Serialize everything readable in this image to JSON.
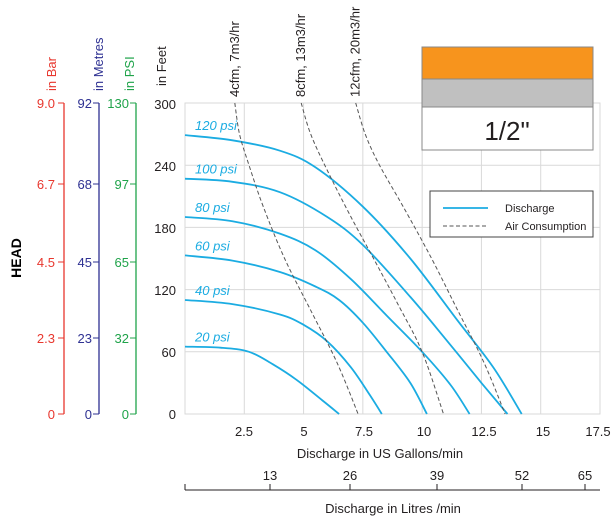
{
  "colors": {
    "bar": "#e8372e",
    "metres": "#2e3192",
    "psi": "#1fa34a",
    "feet": "#231f20",
    "discharge": "#1bace2",
    "air": "#555555",
    "grid": "#d9d9d9",
    "badge_top": "#f7941d",
    "badge_mid": "#c0c0c0",
    "badge_border": "#888888"
  },
  "head_label": "HEAD",
  "size_badge": "1/2\"",
  "legend": {
    "discharge": "Discharge",
    "air": "Air Consumption"
  },
  "axes": {
    "bar": {
      "title": "in Bar",
      "ticks": [
        "9.0",
        "6.7",
        "4.5",
        "2.3",
        "0"
      ]
    },
    "metres": {
      "title": "in Metres",
      "ticks": [
        "92",
        "68",
        "45",
        "23",
        "0"
      ]
    },
    "psi": {
      "title": "in PSI",
      "ticks": [
        "130",
        "97",
        "65",
        "32",
        "0"
      ]
    },
    "feet": {
      "title": "in Feet",
      "ticks": [
        "300",
        "240",
        "180",
        "120",
        "60",
        "0"
      ]
    },
    "x_gpm": {
      "title": "Discharge in US Gallons/min",
      "ticks": [
        "2.5",
        "5",
        "7.5",
        "10",
        "12.5",
        "15",
        "17.5"
      ]
    },
    "x_lpm": {
      "title": "Discharge in Litres /min",
      "ticks": [
        "13",
        "26",
        "39",
        "52",
        "65"
      ]
    }
  },
  "chart_data": {
    "type": "line",
    "xlabel": "Discharge in US Gallons/min",
    "ylabel": "in Feet",
    "xlim": [
      0,
      17.5
    ],
    "ylim": [
      0,
      300
    ],
    "grid": true,
    "legend_position": "top-right",
    "series": [
      {
        "name": "120 psi",
        "kind": "discharge",
        "label": "120 psi",
        "points": [
          [
            0,
            269
          ],
          [
            2,
            264
          ],
          [
            4,
            254
          ],
          [
            5.5,
            238
          ],
          [
            7.5,
            200
          ],
          [
            9.5,
            150
          ],
          [
            11.5,
            90
          ],
          [
            13,
            45
          ],
          [
            14.2,
            0
          ]
        ]
      },
      {
        "name": "100 psi",
        "kind": "discharge",
        "label": "100 psi",
        "points": [
          [
            0,
            227
          ],
          [
            2,
            224
          ],
          [
            4,
            214
          ],
          [
            6,
            190
          ],
          [
            7.5,
            163
          ],
          [
            9.5,
            113
          ],
          [
            11,
            72
          ],
          [
            12.5,
            30
          ],
          [
            13.6,
            0
          ]
        ]
      },
      {
        "name": "80 psi",
        "kind": "discharge",
        "label": "80 psi",
        "points": [
          [
            0,
            190
          ],
          [
            2,
            186
          ],
          [
            4,
            174
          ],
          [
            5.5,
            158
          ],
          [
            7,
            130
          ],
          [
            8.5,
            95
          ],
          [
            10,
            60
          ],
          [
            11.2,
            28
          ],
          [
            12,
            0
          ]
        ]
      },
      {
        "name": "60 psi",
        "kind": "discharge",
        "label": "60 psi",
        "points": [
          [
            0,
            153
          ],
          [
            2,
            148
          ],
          [
            4,
            137
          ],
          [
            5.5,
            123
          ],
          [
            6.5,
            110
          ],
          [
            7.5,
            88
          ],
          [
            8.5,
            60
          ],
          [
            9.5,
            30
          ],
          [
            10.2,
            0
          ]
        ]
      },
      {
        "name": "40 psi",
        "kind": "discharge",
        "label": "40 psi",
        "points": [
          [
            0,
            110
          ],
          [
            2,
            106
          ],
          [
            4,
            96
          ],
          [
            5,
            86
          ],
          [
            6,
            70
          ],
          [
            7,
            45
          ],
          [
            7.8,
            18
          ],
          [
            8.3,
            0
          ]
        ]
      },
      {
        "name": "20 psi",
        "kind": "discharge",
        "label": "20 psi",
        "points": [
          [
            0,
            65
          ],
          [
            1.5,
            64
          ],
          [
            2.7,
            60
          ],
          [
            3.7,
            48
          ],
          [
            4.7,
            33
          ],
          [
            5.8,
            13
          ],
          [
            6.5,
            0
          ]
        ]
      },
      {
        "name": "4cfm, 7m3/hr",
        "kind": "air",
        "label": "4cfm, 7m3/hr",
        "points": [
          [
            2.1,
            300
          ],
          [
            2.3,
            270
          ],
          [
            2.7,
            240
          ],
          [
            3.3,
            200
          ],
          [
            4.2,
            150
          ],
          [
            5.3,
            100
          ],
          [
            6.4,
            50
          ],
          [
            7.3,
            0
          ]
        ]
      },
      {
        "name": "8cfm, 13m3/hr",
        "kind": "air",
        "label": "8cfm, 13m3/hr",
        "points": [
          [
            4.9,
            300
          ],
          [
            5.3,
            270
          ],
          [
            6,
            235
          ],
          [
            7,
            190
          ],
          [
            8,
            148
          ],
          [
            9,
            105
          ],
          [
            10,
            60
          ],
          [
            10.9,
            0
          ]
        ]
      },
      {
        "name": "12cfm, 20m3/hr",
        "kind": "air",
        "label": "12cfm, 20m3/hr",
        "points": [
          [
            7.2,
            300
          ],
          [
            7.6,
            270
          ],
          [
            8.2,
            240
          ],
          [
            9.2,
            200
          ],
          [
            10.4,
            150
          ],
          [
            11.5,
            100
          ],
          [
            12.6,
            50
          ],
          [
            13.5,
            0
          ]
        ]
      }
    ]
  }
}
